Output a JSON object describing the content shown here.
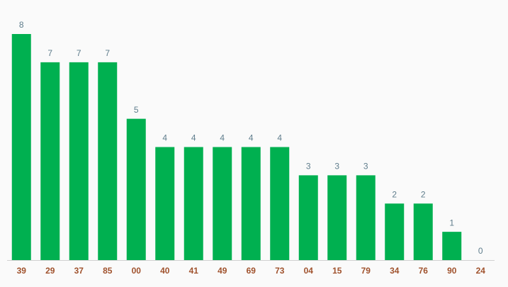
{
  "chart_data": {
    "type": "bar",
    "categories": [
      "39",
      "29",
      "37",
      "85",
      "00",
      "40",
      "41",
      "49",
      "69",
      "73",
      "04",
      "15",
      "79",
      "34",
      "76",
      "90",
      "24"
    ],
    "values": [
      8,
      7,
      7,
      7,
      5,
      4,
      4,
      4,
      4,
      4,
      3,
      3,
      3,
      2,
      2,
      1,
      0
    ],
    "color": "#00b050"
  }
}
